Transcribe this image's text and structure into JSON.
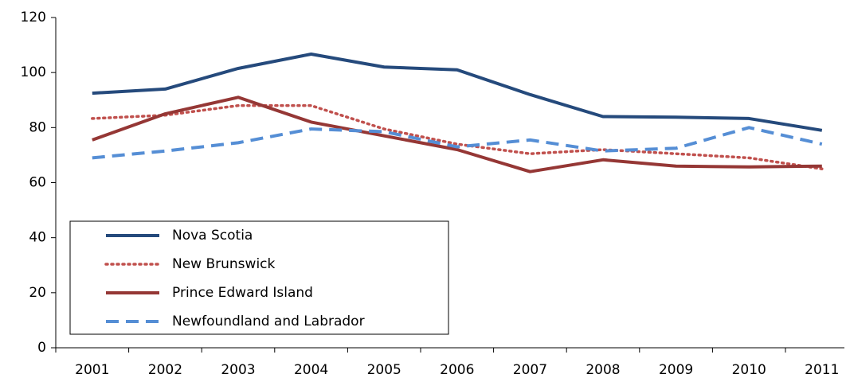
{
  "chart_data": {
    "type": "line",
    "categories": [
      "2001",
      "2002",
      "2003",
      "2004",
      "2005",
      "2006",
      "2007",
      "2008",
      "2009",
      "2010",
      "2011"
    ],
    "series": [
      {
        "name": "Nova Scotia",
        "color": "#254a7c",
        "dash": "solid",
        "values": [
          92.5,
          94,
          101.5,
          106.7,
          102,
          101,
          92,
          84,
          83.8,
          83.3,
          79
        ]
      },
      {
        "name": "New Brunswick",
        "color": "#c0504d",
        "dash": "dotted",
        "values": [
          83.3,
          84.5,
          88,
          88,
          79.5,
          74,
          70.5,
          72,
          70.5,
          69,
          65
        ]
      },
      {
        "name": "Prince Edward Island",
        "color": "#953735",
        "dash": "solid",
        "values": [
          75.5,
          85,
          91,
          82,
          77,
          72,
          64,
          68.3,
          66,
          65.7,
          66
        ]
      },
      {
        "name": "Newfoundland and Labrador",
        "color": "#558ed5",
        "dash": "dashed",
        "values": [
          69,
          71.5,
          74.5,
          79.5,
          78.5,
          73,
          75.5,
          71.5,
          72.5,
          80,
          74
        ]
      }
    ],
    "ylim": [
      0,
      120
    ],
    "yticks": [
      0,
      20,
      40,
      60,
      80,
      100,
      120
    ],
    "grid": false,
    "legend": "lower-left"
  }
}
